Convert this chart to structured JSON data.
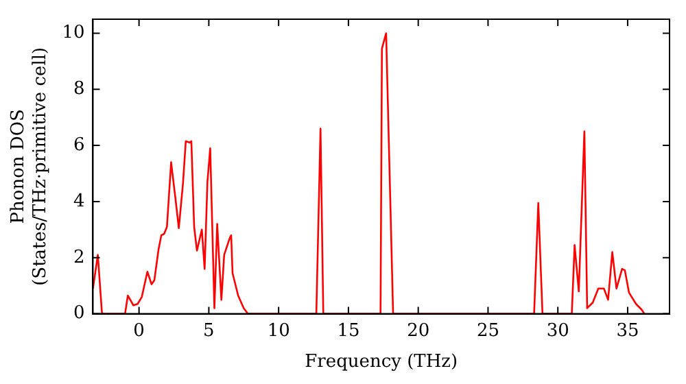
{
  "chart_data": {
    "type": "line",
    "xlabel": "Frequency (THz)",
    "ylabel": "Phonon DOS\n(States/THz·primitive cell)",
    "xlim": [
      -3.3,
      38
    ],
    "ylim": [
      0,
      10.5
    ],
    "xticks": [
      0,
      5,
      10,
      15,
      20,
      25,
      30,
      35
    ],
    "yticks": [
      0,
      2,
      4,
      6,
      8,
      10
    ],
    "grid": false,
    "legend": false,
    "marker": "none",
    "line_style": "solid",
    "series": [
      {
        "color": "#ff0000",
        "x": [
          -3.3,
          -2.95,
          -2.65,
          -1.0,
          -0.8,
          -0.4,
          -0.1,
          0.2,
          0.6,
          0.9,
          1.1,
          1.4,
          1.6,
          1.8,
          2.0,
          2.3,
          2.6,
          2.85,
          3.15,
          3.35,
          3.65,
          3.75,
          3.95,
          4.15,
          4.5,
          4.7,
          4.9,
          5.1,
          5.4,
          5.6,
          5.9,
          6.1,
          6.5,
          6.6,
          6.7,
          7.1,
          7.5,
          7.8,
          12.7,
          13.0,
          13.2,
          17.3,
          17.4,
          17.7,
          18.2,
          28.3,
          28.6,
          28.9,
          31.0,
          31.2,
          31.5,
          31.9,
          32.1,
          32.5,
          32.9,
          33.3,
          33.6,
          33.9,
          34.2,
          34.6,
          34.8,
          35.1,
          35.6,
          36.0,
          36.2
        ],
        "values": [
          0.9,
          2.1,
          0,
          0,
          0.65,
          0.3,
          0.35,
          0.6,
          1.5,
          1.05,
          1.2,
          2.3,
          2.8,
          2.85,
          3.1,
          5.4,
          4.15,
          3.05,
          4.65,
          6.15,
          6.1,
          6.15,
          3.1,
          2.25,
          3.0,
          1.6,
          4.7,
          5.9,
          0.2,
          3.2,
          0.5,
          2.1,
          2.7,
          2.8,
          1.45,
          0.65,
          0.2,
          0,
          0,
          6.6,
          0,
          0,
          9.45,
          10.0,
          0,
          0,
          3.95,
          0,
          0,
          2.45,
          0.8,
          6.5,
          0.2,
          0.4,
          0.9,
          0.9,
          0.5,
          2.2,
          0.9,
          1.6,
          1.55,
          0.75,
          0.35,
          0.15,
          0
        ]
      }
    ]
  }
}
